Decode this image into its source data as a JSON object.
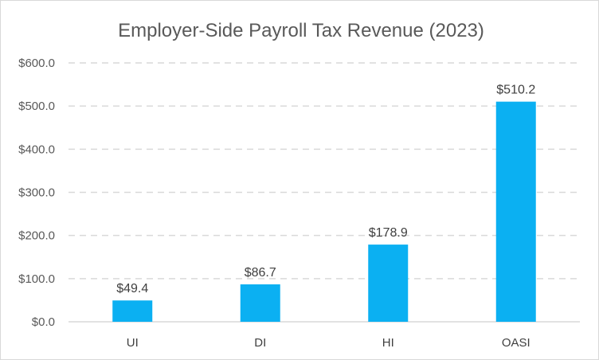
{
  "chart_data": {
    "type": "bar",
    "title": "Employer-Side Payroll Tax Revenue (2023)",
    "xlabel": "",
    "ylabel": "",
    "categories": [
      "UI",
      "DI",
      "HI",
      "OASI"
    ],
    "values": [
      49.4,
      86.7,
      178.9,
      510.2
    ],
    "data_labels": [
      "$49.4",
      "$86.7",
      "$178.9",
      "$510.2"
    ],
    "y_ticks": [
      0,
      100,
      200,
      300,
      400,
      500,
      600
    ],
    "y_tick_labels": [
      "$0.0",
      "$100.0",
      "$200.0",
      "$300.0",
      "$400.0",
      "$500.0",
      "$600.0"
    ],
    "ylim": [
      0,
      600
    ],
    "grid": true,
    "legend": "none",
    "colors": {
      "bar": "#0BB0F2",
      "grid": "#d9d9d9",
      "axis": "#d9d9d9"
    }
  }
}
